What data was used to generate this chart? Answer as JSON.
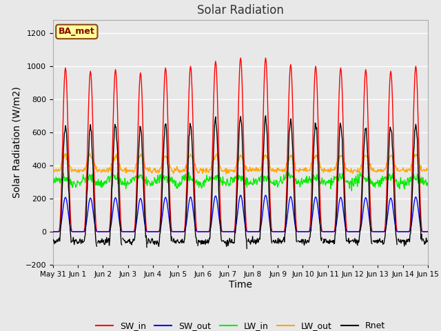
{
  "title": "Solar Radiation",
  "xlabel": "Time",
  "ylabel": "Solar Radiation (W/m2)",
  "ylim": [
    -200,
    1280
  ],
  "yticks": [
    -200,
    0,
    200,
    400,
    600,
    800,
    1000,
    1200
  ],
  "label_text": "BA_met",
  "plot_bg_color": "#e8e8e8",
  "fig_bg_color": "#e8e8e8",
  "grid_color": "#ffffff",
  "series_colors": {
    "SW_in": "#ff0000",
    "SW_out": "#0000ff",
    "LW_in": "#00ee00",
    "LW_out": "#ffa500",
    "Rnet": "#000000"
  },
  "n_days": 15,
  "hours_per_day": 24,
  "dt_hours": 0.5,
  "SW_in_peaks": [
    990,
    970,
    980,
    960,
    990,
    1000,
    1030,
    1050,
    1050,
    1010,
    1000,
    990,
    980,
    970,
    1000
  ],
  "SW_out_factor": 0.21,
  "LW_in_base": 310,
  "LW_in_noise": 15,
  "LW_out_base": 370,
  "LW_out_day_amplitude": 90,
  "Rnet_night": -60,
  "xticklabels": [
    "May 31",
    "Jun 1",
    "Jun 2",
    "Jun 3",
    "Jun 4",
    "Jun 5",
    "Jun 6",
    "Jun 7",
    "Jun 8",
    "Jun 9",
    "Jun 10",
    "Jun 11",
    "Jun 12",
    "Jun 13",
    "Jun 14",
    "Jun 15"
  ],
  "title_fontsize": 12,
  "axis_fontsize": 10,
  "tick_fontsize": 8,
  "legend_fontsize": 9
}
